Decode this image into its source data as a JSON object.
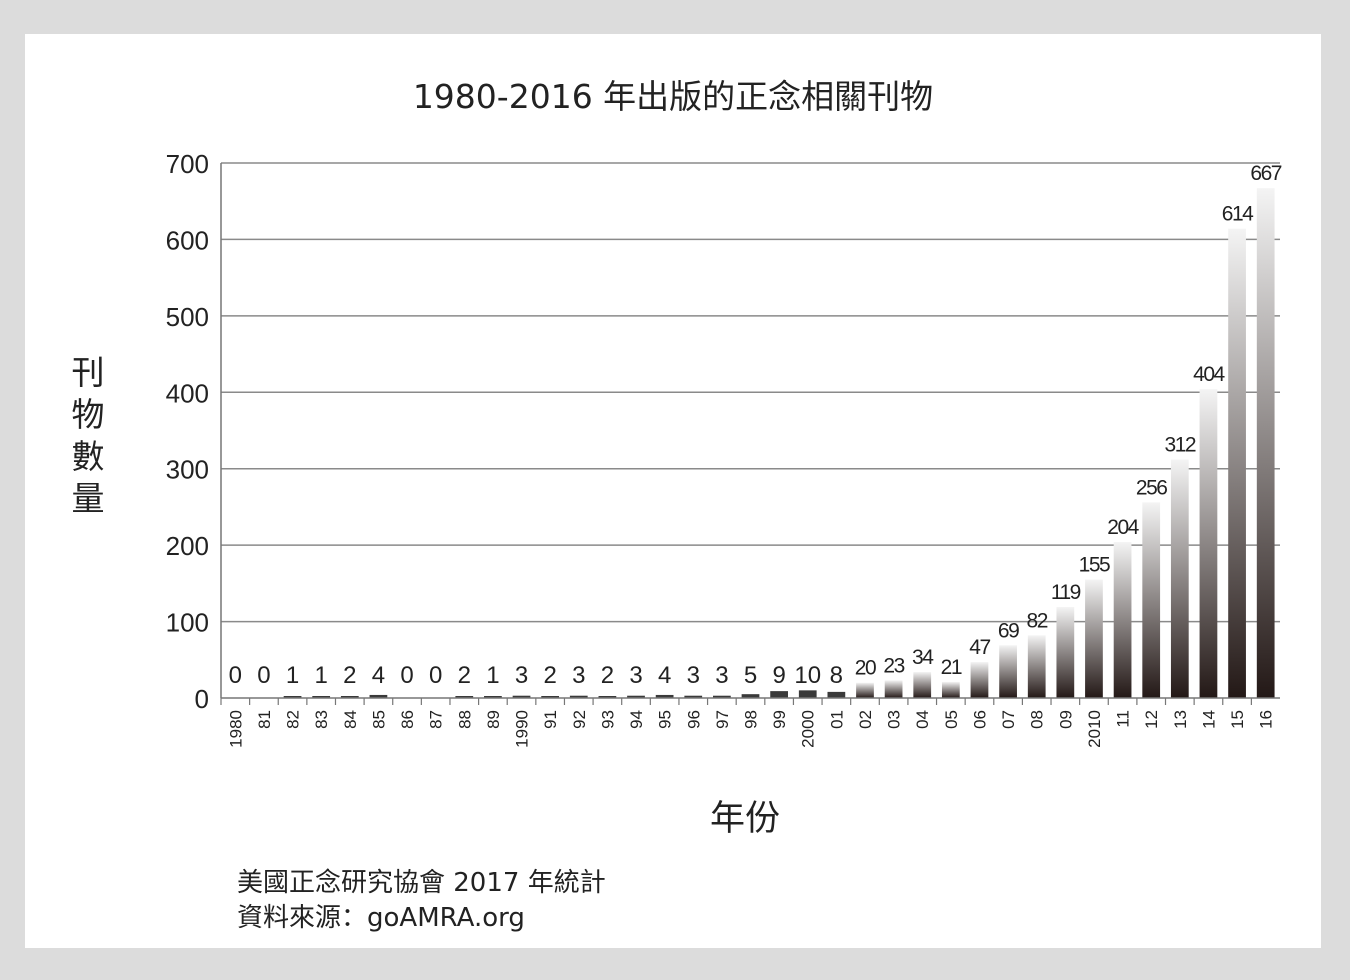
{
  "chart_data": {
    "type": "bar",
    "title": "1980-2016 年出版的正念相關刊物",
    "xlabel": "年份",
    "ylabel": "刊物數量",
    "ylim": [
      0,
      700
    ],
    "yticks": [
      "0",
      "100",
      "200",
      "300",
      "400",
      "500",
      "600",
      "700"
    ],
    "grid": true,
    "categories": [
      "1980",
      "81",
      "82",
      "83",
      "84",
      "85",
      "86",
      "87",
      "88",
      "89",
      "1990",
      "91",
      "92",
      "93",
      "94",
      "95",
      "96",
      "97",
      "98",
      "99",
      "2000",
      "01",
      "02",
      "03",
      "04",
      "05",
      "06",
      "07",
      "08",
      "09",
      "2010",
      "11",
      "12",
      "13",
      "14",
      "15",
      "16"
    ],
    "values": [
      0,
      0,
      1,
      1,
      2,
      4,
      0,
      0,
      2,
      1,
      3,
      2,
      3,
      2,
      3,
      4,
      3,
      3,
      5,
      9,
      10,
      8,
      20,
      23,
      34,
      21,
      47,
      69,
      82,
      119,
      155,
      204,
      256,
      312,
      404,
      614,
      667
    ]
  },
  "notes": {
    "line1": "美國正念研究協會 2017 年統計",
    "line2": "資料來源：goAMRA.org"
  }
}
